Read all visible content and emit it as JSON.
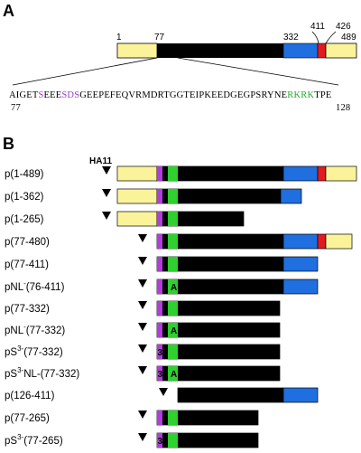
{
  "panel_a": {
    "label": "A",
    "ticks": {
      "t1": "1",
      "t77": "77",
      "t332": "332",
      "t411": "411",
      "t426": "426",
      "t489": "489"
    },
    "sequence": {
      "p1": "AIGET",
      "p2": "S",
      "p3": "EEE",
      "p4": "SDS",
      "p5": "GEEPEFEQVRMDRTGGTEIPKEEDGEGPSRYNE",
      "p6": "RKRK",
      "p7": "TPE"
    },
    "seq_start": "77",
    "seq_end": "128"
  },
  "panel_b": {
    "label": "B",
    "tag_label": "HA11",
    "constructs": [
      {
        "pre": "p(1-489)",
        "sup": "",
        "post": ""
      },
      {
        "pre": "p(1-362)",
        "sup": "",
        "post": ""
      },
      {
        "pre": "p(1-265)",
        "sup": "",
        "post": ""
      },
      {
        "pre": "p(77-480)",
        "sup": "",
        "post": ""
      },
      {
        "pre": "p(77-411)",
        "sup": "",
        "post": ""
      },
      {
        "pre": "pNL",
        "sup": "-",
        "post": "(76-411)"
      },
      {
        "pre": "p(77-332)",
        "sup": "",
        "post": ""
      },
      {
        "pre": "pNL",
        "sup": "-",
        "post": "(77-332)"
      },
      {
        "pre": "pS",
        "sup": "3-",
        "post": "(77-332)"
      },
      {
        "pre": "pS",
        "sup": "3-",
        "post": "NL-(77-332)"
      },
      {
        "pre": "p(126-411)",
        "sup": "",
        "post": ""
      },
      {
        "pre": "p(77-265)",
        "sup": "",
        "post": ""
      },
      {
        "pre": "pS",
        "sup": "3-",
        "post": "(77-265)"
      }
    ],
    "mutation_a": "A",
    "mutation_3": "3"
  },
  "colors": {
    "yellow": "#fbf39a",
    "black": "#000000",
    "blue": "#1f6fe0",
    "red": "#e11b22",
    "purple": "#b23cdc",
    "green": "#2fd02f",
    "seq_purple": "#a23cc8",
    "seq_green": "#1fae2c"
  }
}
